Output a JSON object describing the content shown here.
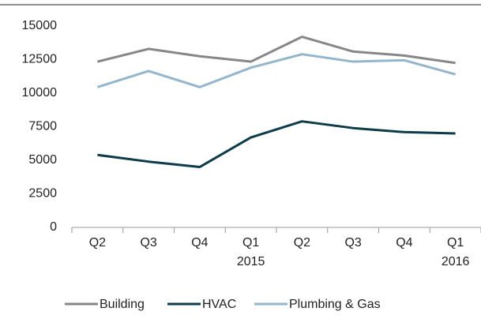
{
  "chart_data": {
    "type": "line",
    "categories": [
      [
        "Q2"
      ],
      [
        "Q3"
      ],
      [
        "Q4"
      ],
      [
        "Q1",
        "2015"
      ],
      [
        "Q2"
      ],
      [
        "Q3"
      ],
      [
        "Q4"
      ],
      [
        "Q1",
        "2016"
      ]
    ],
    "series": [
      {
        "name": "Building",
        "color": "#878787",
        "values": [
          12350,
          13300,
          12750,
          12350,
          14200,
          13100,
          12800,
          12250
        ]
      },
      {
        "name": "HVAC",
        "color": "#0c3c4a",
        "values": [
          5400,
          4900,
          4500,
          6700,
          7900,
          7400,
          7100,
          7000
        ]
      },
      {
        "name": "Plumbing & Gas",
        "color": "#93b6cd",
        "values": [
          10450,
          11650,
          10450,
          11900,
          12900,
          12350,
          12450,
          11400
        ]
      }
    ],
    "ylim": [
      0,
      15000
    ],
    "yticks": [
      0,
      2500,
      5000,
      7500,
      10000,
      12500,
      15000
    ],
    "grid": false,
    "legend": "bottom"
  }
}
